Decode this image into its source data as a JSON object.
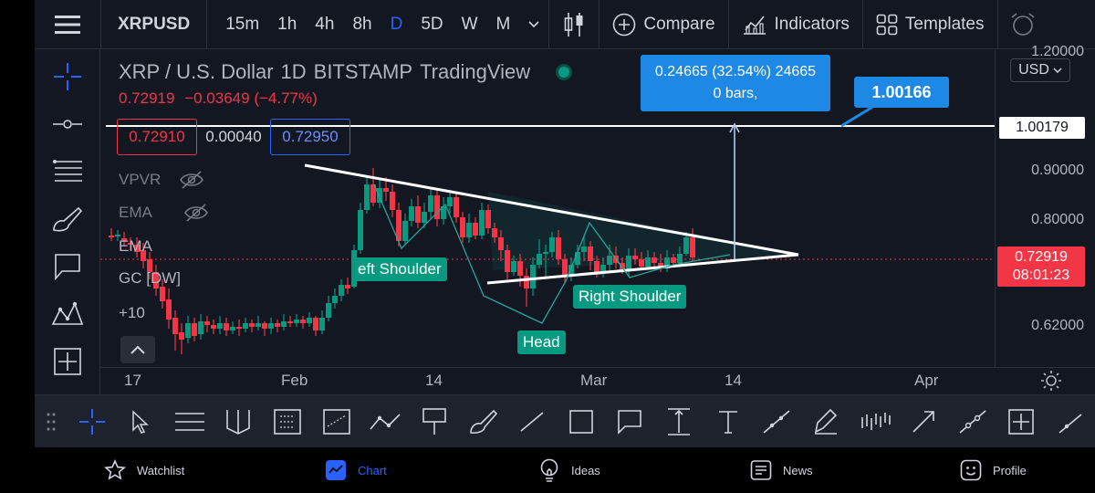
{
  "topbar": {
    "symbol": "XRPUSD",
    "intervals": [
      "15m",
      "1h",
      "4h",
      "8h",
      "D",
      "5D",
      "W",
      "M"
    ],
    "active_interval": "D",
    "compare_label": "Compare",
    "indicators_label": "Indicators",
    "templates_label": "Templates"
  },
  "legend": {
    "pair": "XRP / U.S. Dollar",
    "interval": "1D",
    "exchange": "BITSTAMP",
    "source": "TradingView",
    "price": "0.72919",
    "change": "−0.03649",
    "change_pct": "(−4.77%)",
    "bid": "0.72910",
    "spread": "0.00040",
    "ask": "0.72950"
  },
  "indicators": [
    {
      "label": "VPVR"
    },
    {
      "label": "EMA"
    },
    {
      "label": "EMA"
    },
    {
      "label": "GC [DW]"
    }
  ],
  "more_indicators": "+10",
  "measure": {
    "line1": "0.24665 (32.54%) 24665",
    "line2": "0 bars,"
  },
  "target_callout": "1.00166",
  "pattern_labels": {
    "left_shoulder": "eft Shoulder",
    "head": "Head",
    "right_shoulder": "Right Shoulder"
  },
  "price_scale": {
    "currency": "USD",
    "labels": [
      "1.20000",
      "0.90000",
      "0.80000",
      "0.62000"
    ],
    "target_line": "1.00179",
    "current_price": "0.72919",
    "countdown": "08:01:23"
  },
  "time_axis": [
    "17",
    "Feb",
    "14",
    "Mar",
    "14",
    "Apr"
  ],
  "bottom_nav": [
    {
      "label": "Watchlist",
      "icon": "star-icon"
    },
    {
      "label": "Chart",
      "icon": "chart-icon"
    },
    {
      "label": "Ideas",
      "icon": "lightbulb-icon"
    },
    {
      "label": "News",
      "icon": "news-icon"
    },
    {
      "label": "Profile",
      "icon": "smiley-icon"
    }
  ],
  "active_nav": "Chart",
  "colors": {
    "background": "#131722",
    "up": "#089981",
    "down": "#f23645",
    "accent": "#2962ff",
    "callout": "#1e88e5"
  }
}
